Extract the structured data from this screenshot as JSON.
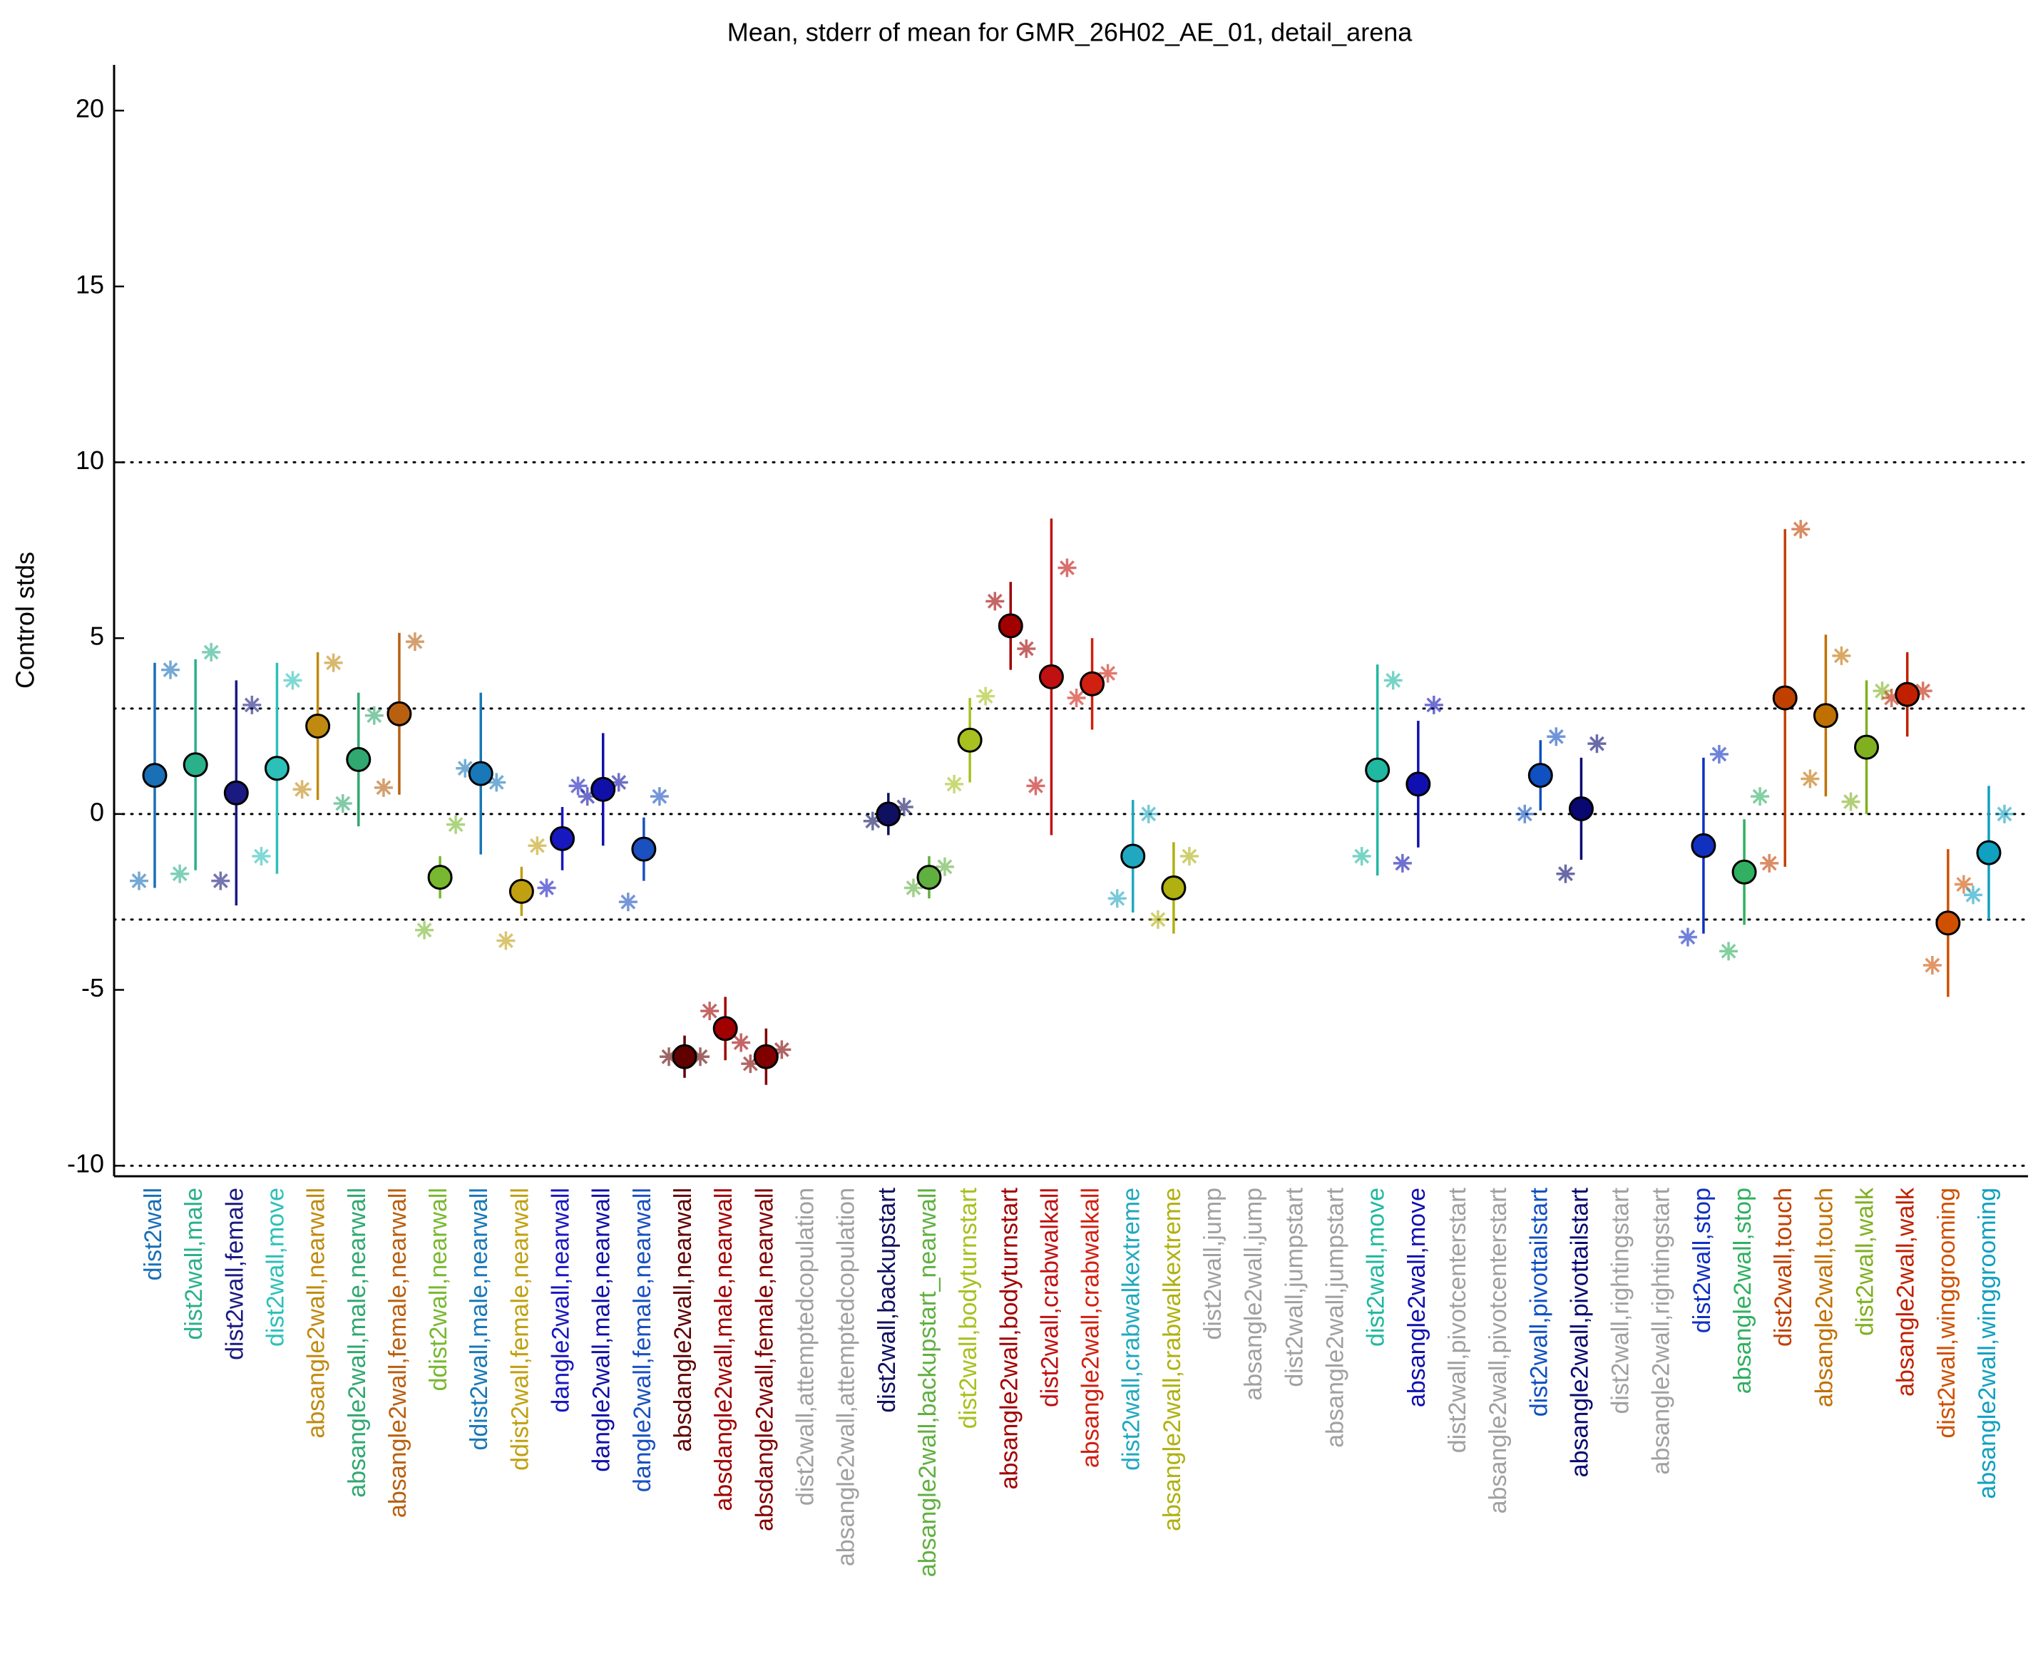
{
  "chart_data": {
    "type": "errorbar",
    "title": "Mean, stderr of mean for GMR_26H02_AE_01, detail_arena",
    "y_label": "Control stds",
    "ylim": [
      -10.3,
      21.3
    ],
    "yticks": [
      -10,
      -5,
      0,
      5,
      10,
      15,
      20
    ],
    "grid_lines": [
      -10,
      -3,
      0,
      3,
      10
    ],
    "categories": [
      "dist2wall",
      "dist2wall,male",
      "dist2wall,female",
      "dist2wall,move",
      "absangle2wall,nearwall",
      "absangle2wall,male,nearwall",
      "absangle2wall,female,nearwall",
      "ddist2wall,nearwall",
      "ddist2wall,male,nearwall",
      "ddist2wall,female,nearwall",
      "dangle2wall,nearwall",
      "dangle2wall,male,nearwall",
      "dangle2wall,female,nearwall",
      "absdangle2wall,nearwall",
      "absdangle2wall,male,nearwall",
      "absdangle2wall,female,nearwall",
      "dist2wall,attemptedcopulation",
      "absangle2wall,attemptedcopulation",
      "dist2wall,backupstart",
      "absangle2wall,backupstart_nearwall",
      "dist2wall,bodyturnstart",
      "absangle2wall,bodyturnstart",
      "dist2wall,crabwalkall",
      "absangle2wall,crabwalkall",
      "dist2wall,crabwalkextreme",
      "absangle2wall,crabwalkextreme",
      "dist2wall,jump",
      "absangle2wall,jump",
      "dist2wall,jumpstart",
      "absangle2wall,jumpstart",
      "dist2wall,move",
      "absangle2wall,move",
      "dist2wall,pivotcenterstart",
      "absangle2wall,pivotcenterstart",
      "dist2wall,pivottailstart",
      "absangle2wall,pivottailstart",
      "dist2wall,rightingstart",
      "absangle2wall,rightingstart",
      "dist2wall,stop",
      "absangle2wall,stop",
      "dist2wall,touch",
      "absangle2wall,touch",
      "dist2wall,walk",
      "absangle2wall,walk",
      "dist2wall,winggrooming",
      "absangle2wall,winggrooming"
    ],
    "colors": [
      "#1a6fb5",
      "#2ab08a",
      "#1a1a80",
      "#2cc0b8",
      "#c08a10",
      "#30a870",
      "#b86010",
      "#78b830",
      "#1878b8",
      "#c0a010",
      "#1818c0",
      "#1010a8",
      "#1a50c0",
      "#600000",
      "#a00000",
      "#800000",
      "#a0a0a0",
      "#a0a0a0",
      "#101060",
      "#60b040",
      "#a8c020",
      "#a00000",
      "#c01010",
      "#d02010",
      "#20a8c0",
      "#b0b010",
      "#a0a0a0",
      "#a0a0a0",
      "#a0a0a0",
      "#a0a0a0",
      "#20b8a0",
      "#1010b0",
      "#a0a0a0",
      "#a0a0a0",
      "#1050c0",
      "#080870",
      "#a0a0a0",
      "#a0a0a0",
      "#1030c0",
      "#30b060",
      "#c04000",
      "#c07000",
      "#80b020",
      "#c02000",
      "#d05000",
      "#10a0c0"
    ],
    "mean": [
      1.1,
      1.4,
      0.6,
      1.3,
      2.5,
      1.55,
      2.85,
      -1.8,
      1.15,
      -2.2,
      -0.7,
      0.7,
      -1.0,
      -6.9,
      -6.1,
      -6.9,
      null,
      null,
      0.0,
      -1.8,
      2.1,
      5.35,
      3.9,
      3.7,
      -1.2,
      -2.1,
      null,
      null,
      null,
      null,
      1.25,
      0.85,
      null,
      null,
      1.1,
      0.15,
      null,
      null,
      -0.9,
      -1.65,
      3.3,
      2.8,
      1.9,
      3.4,
      -3.1,
      -1.1
    ],
    "stderr": [
      3.2,
      3.0,
      3.2,
      3.0,
      2.1,
      1.9,
      2.3,
      0.6,
      2.3,
      0.7,
      0.9,
      1.6,
      0.9,
      0.6,
      0.9,
      0.8,
      null,
      null,
      0.6,
      0.6,
      1.2,
      1.25,
      4.5,
      1.3,
      1.6,
      1.3,
      null,
      null,
      null,
      null,
      3.0,
      1.8,
      null,
      null,
      1.0,
      1.45,
      null,
      null,
      2.5,
      1.5,
      4.8,
      2.3,
      1.9,
      1.2,
      2.1,
      1.9
    ],
    "star_left": [
      -1.9,
      -1.7,
      -1.9,
      -1.2,
      0.7,
      0.3,
      0.75,
      -3.3,
      1.3,
      -3.6,
      -2.1,
      0.5,
      -2.5,
      -6.9,
      -5.6,
      -7.1,
      null,
      null,
      -0.2,
      -2.1,
      0.85,
      6.05,
      0.8,
      3.3,
      -2.4,
      -3.0,
      null,
      null,
      null,
      null,
      -1.2,
      -1.4,
      null,
      null,
      0.0,
      -1.7,
      null,
      null,
      -3.5,
      -3.9,
      -1.4,
      1.0,
      0.35,
      3.3,
      -4.3,
      -2.3
    ],
    "star_right": [
      4.1,
      4.6,
      3.1,
      3.8,
      4.3,
      2.8,
      4.9,
      -0.3,
      0.9,
      -0.9,
      0.8,
      0.9,
      0.5,
      -6.9,
      -6.5,
      -6.7,
      null,
      null,
      0.2,
      -1.5,
      3.35,
      4.7,
      7.0,
      4.0,
      0.0,
      -1.2,
      null,
      null,
      null,
      null,
      3.8,
      3.1,
      null,
      null,
      2.2,
      2.0,
      null,
      null,
      1.7,
      0.5,
      8.1,
      4.5,
      3.5,
      3.5,
      -2.0,
      0.0
    ]
  }
}
